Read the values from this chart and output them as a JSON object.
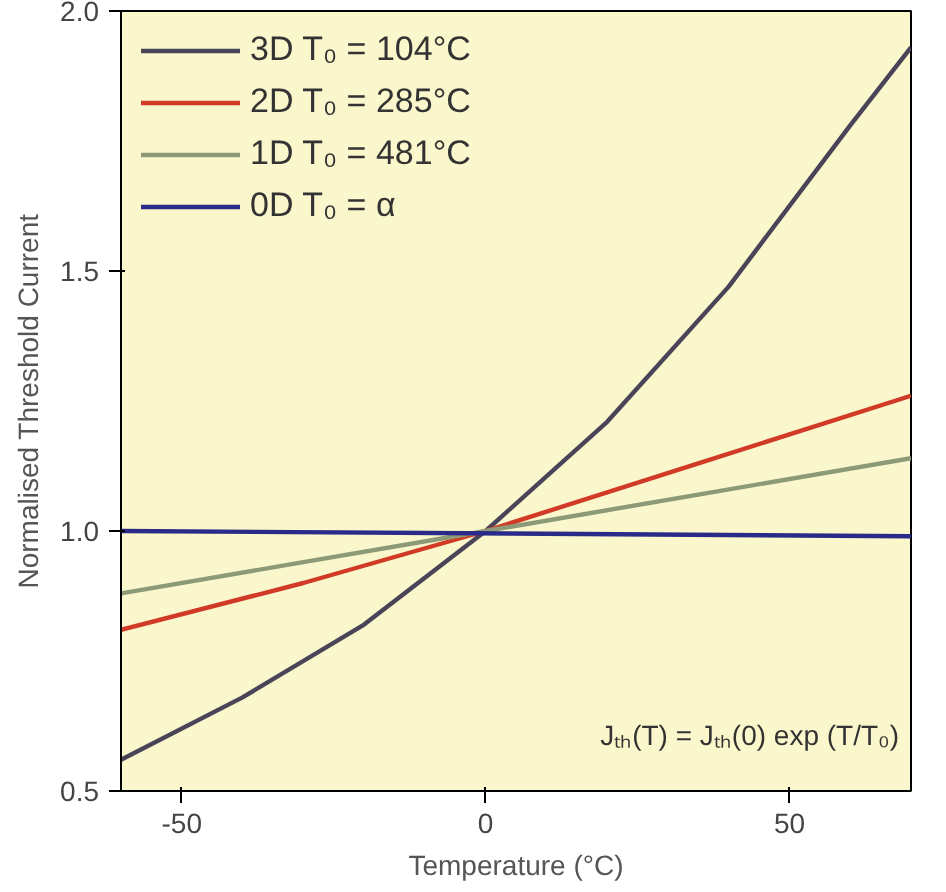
{
  "chart_data": {
    "type": "line",
    "xlabel": "Temperature (°C)",
    "ylabel": "Normalised Threshold Current",
    "xlim": [
      -60,
      70
    ],
    "ylim": [
      0.5,
      2.0
    ],
    "xticks": [
      -50,
      0,
      50
    ],
    "yticks": [
      {
        "value": 0.5,
        "label": "0.5"
      },
      {
        "value": 1.0,
        "label": "1.0"
      },
      {
        "value": 1.5,
        "label": "1.5"
      },
      {
        "value": 2.0,
        "label": "2.0"
      }
    ],
    "grid": false,
    "legend": "top left",
    "marker": "none",
    "line_style": "solid",
    "annotations": [
      "Jₜₕ(T) = Jₜₕ(0) exp (T/T₀)"
    ],
    "series": [
      {
        "name": "3D T₀ = 104°C",
        "color": "#4a4458",
        "x": [
          -60,
          -40,
          -20,
          0,
          20,
          40,
          60,
          70
        ],
        "values": [
          0.56,
          0.68,
          0.82,
          1.0,
          1.21,
          1.47,
          1.78,
          1.93
        ]
      },
      {
        "name": "2D T₀ = 285°C",
        "color": "#d23a28",
        "x": [
          -60,
          -30,
          0,
          35,
          70
        ],
        "values": [
          0.81,
          0.9,
          1.0,
          1.13,
          1.26
        ]
      },
      {
        "name": "1D T₀ = 481°C",
        "color": "#8c9a78",
        "x": [
          -60,
          -30,
          0,
          35,
          70
        ],
        "values": [
          0.88,
          0.94,
          1.0,
          1.07,
          1.14
        ]
      },
      {
        "name": "0D T₀ = α",
        "color": "#2a2a88",
        "x": [
          -60,
          70
        ],
        "values": [
          1.0,
          0.99
        ]
      }
    ]
  }
}
